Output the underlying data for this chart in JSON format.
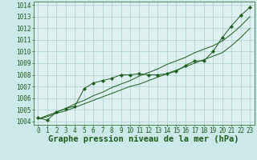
{
  "title": "Graphe pression niveau de la mer (hPa)",
  "bg_color": "#cde8e8",
  "plot_bg_color": "#dff0f0",
  "grid_color": "#b0d4d4",
  "line_color": "#1a5c1a",
  "marker_color": "#1a5c1a",
  "xlim": [
    -0.5,
    23.5
  ],
  "ylim": [
    1003.7,
    1014.3
  ],
  "yticks": [
    1004,
    1005,
    1006,
    1007,
    1008,
    1009,
    1010,
    1011,
    1012,
    1013,
    1014
  ],
  "xticks": [
    0,
    1,
    2,
    3,
    4,
    5,
    6,
    7,
    8,
    9,
    10,
    11,
    12,
    13,
    14,
    15,
    16,
    17,
    18,
    19,
    20,
    21,
    22,
    23
  ],
  "x": [
    0,
    1,
    2,
    3,
    4,
    5,
    6,
    7,
    8,
    9,
    10,
    11,
    12,
    13,
    14,
    15,
    16,
    17,
    18,
    19,
    20,
    21,
    22,
    23
  ],
  "y_measured": [
    1004.3,
    1004.1,
    1004.8,
    1005.1,
    1005.3,
    1006.8,
    1007.3,
    1007.5,
    1007.7,
    1008.0,
    1008.0,
    1008.1,
    1008.0,
    1008.0,
    1008.1,
    1008.3,
    1008.8,
    1009.2,
    1009.2,
    1010.0,
    1011.2,
    1012.2,
    1013.1,
    1013.8
  ],
  "y_trend1": [
    1004.2,
    1004.4,
    1004.7,
    1004.9,
    1005.2,
    1005.5,
    1005.8,
    1006.1,
    1006.4,
    1006.7,
    1007.0,
    1007.2,
    1007.5,
    1007.8,
    1008.1,
    1008.4,
    1008.7,
    1009.0,
    1009.3,
    1009.6,
    1009.9,
    1010.5,
    1011.2,
    1012.0
  ],
  "y_trend2": [
    1004.2,
    1004.5,
    1004.8,
    1005.1,
    1005.5,
    1005.8,
    1006.2,
    1006.5,
    1006.9,
    1007.2,
    1007.5,
    1007.9,
    1008.2,
    1008.5,
    1008.9,
    1009.2,
    1009.5,
    1009.9,
    1010.2,
    1010.5,
    1010.9,
    1011.5,
    1012.2,
    1013.0
  ],
  "title_fontsize": 7.5,
  "tick_fontsize": 5.5
}
